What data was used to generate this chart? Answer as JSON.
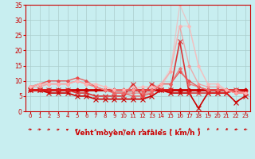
{
  "xlabel": "Vent moyen/en rafales ( km/h )",
  "background_color": "#c8eef0",
  "grid_color": "#aacccc",
  "x_values": [
    0,
    1,
    2,
    3,
    4,
    5,
    6,
    7,
    8,
    9,
    10,
    11,
    12,
    13,
    14,
    15,
    16,
    17,
    18,
    19,
    20,
    21,
    22,
    23
  ],
  "lines": [
    {
      "y": [
        7,
        7,
        7,
        7,
        7,
        7,
        7,
        7,
        7,
        7,
        7,
        7,
        7,
        7,
        7,
        7,
        7,
        7,
        7,
        7,
        7,
        7,
        7,
        7
      ],
      "color": "#cc0000",
      "lw": 2.0,
      "marker": "D",
      "ms": 2.5,
      "alpha": 1.0
    },
    {
      "y": [
        7,
        7,
        6,
        6,
        6,
        5,
        5,
        4,
        4,
        4,
        4,
        4,
        4,
        5,
        7,
        6,
        6,
        6,
        1,
        6,
        6,
        6,
        3,
        5
      ],
      "color": "#cc0000",
      "lw": 1.2,
      "marker": "x",
      "ms": 4,
      "alpha": 1.0
    },
    {
      "y": [
        7,
        7,
        7,
        7,
        7,
        6,
        6,
        5,
        5,
        5,
        5,
        9,
        5,
        9,
        7,
        7,
        23,
        6,
        6,
        6,
        6,
        6,
        7,
        6
      ],
      "color": "#dd2222",
      "lw": 1.2,
      "marker": "x",
      "ms": 4,
      "alpha": 0.9
    },
    {
      "y": [
        8,
        9,
        10,
        10,
        10,
        11,
        10,
        8,
        7,
        6,
        6,
        5,
        5,
        6,
        9,
        9,
        13,
        10,
        8,
        7,
        7,
        7,
        6,
        6
      ],
      "color": "#ee4444",
      "lw": 1.0,
      "marker": "D",
      "ms": 2,
      "alpha": 0.85
    },
    {
      "y": [
        8,
        9,
        9,
        9,
        9,
        10,
        9,
        8,
        7,
        6,
        6,
        6,
        6,
        6,
        9,
        9,
        14,
        9,
        8,
        7,
        7,
        7,
        6,
        6
      ],
      "color": "#ee6666",
      "lw": 1.0,
      "marker": "D",
      "ms": 2,
      "alpha": 0.75
    },
    {
      "y": [
        8,
        8,
        9,
        9,
        9,
        10,
        9,
        8,
        7,
        7,
        7,
        7,
        7,
        7,
        9,
        13,
        28,
        15,
        9,
        8,
        8,
        7,
        6,
        6
      ],
      "color": "#ff8888",
      "lw": 1.0,
      "marker": "D",
      "ms": 2,
      "alpha": 0.65
    },
    {
      "y": [
        8,
        9,
        9,
        9,
        9,
        10,
        9,
        9,
        8,
        7,
        7,
        7,
        8,
        8,
        8,
        13,
        35,
        28,
        15,
        9,
        9,
        7,
        6,
        6
      ],
      "color": "#ffaaaa",
      "lw": 1.0,
      "marker": "D",
      "ms": 2,
      "alpha": 0.55
    },
    {
      "y": [
        8,
        9,
        9,
        9,
        9,
        10,
        9,
        9,
        8,
        7,
        7,
        8,
        8,
        8,
        9,
        14,
        28,
        28,
        15,
        9,
        9,
        7,
        7,
        6
      ],
      "color": "#ffbbbb",
      "lw": 1.0,
      "marker": "D",
      "ms": 2,
      "alpha": 0.5
    }
  ],
  "wind_dirs": [
    90,
    80,
    70,
    60,
    50,
    45,
    35,
    10,
    0,
    355,
    350,
    345,
    340,
    340,
    335,
    330,
    230,
    220,
    215,
    220,
    225,
    230,
    255,
    270
  ],
  "xlim": [
    -0.5,
    23.5
  ],
  "ylim": [
    0,
    35
  ],
  "yticks": [
    0,
    5,
    10,
    15,
    20,
    25,
    30,
    35
  ],
  "xticks": [
    0,
    1,
    2,
    3,
    4,
    5,
    6,
    7,
    8,
    9,
    10,
    11,
    12,
    13,
    14,
    15,
    16,
    17,
    18,
    19,
    20,
    21,
    22,
    23
  ]
}
